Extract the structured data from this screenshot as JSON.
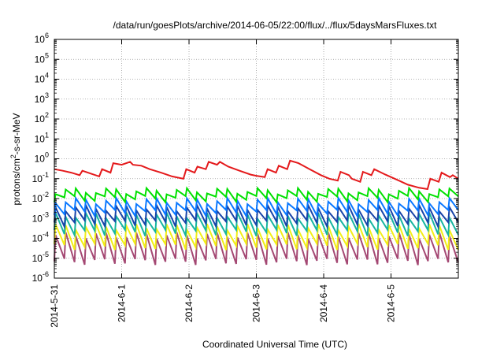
{
  "chart_data": {
    "type": "line",
    "title": "/data/run/goesPlots/archive/2014-06-05/22:00/flux/../flux/5daysMarsFluxes.txt",
    "xlabel": "Coordinated Universal Time (UTC)",
    "ylabel": "protons/cm²-s-sr-MeV",
    "ylabel_base": "protons/cm",
    "ylabel_sup": "2",
    "ylabel_rest": "-s-sr-MeV",
    "y_scale": "log",
    "ylim": [
      1e-06,
      1000000.0
    ],
    "xlim": [
      "2014-05-31 00:00",
      "2014-06-05 23:59"
    ],
    "grid": true,
    "legend": "none",
    "x_ticks": [
      "2014-5-31",
      "2014-6-1",
      "2014-6-2",
      "2014-6-3",
      "2014-6-4",
      "2014-6-5"
    ],
    "y_ticks": [
      {
        "base": "10",
        "exp": "-6"
      },
      {
        "base": "10",
        "exp": "-5"
      },
      {
        "base": "10",
        "exp": "-4"
      },
      {
        "base": "10",
        "exp": "-3"
      },
      {
        "base": "10",
        "exp": "-2"
      },
      {
        "base": "10",
        "exp": "-1"
      },
      {
        "base": "10",
        "exp": "0"
      },
      {
        "base": "10",
        "exp": "1"
      },
      {
        "base": "10",
        "exp": "2"
      },
      {
        "base": "10",
        "exp": "3"
      },
      {
        "base": "10",
        "exp": "4"
      },
      {
        "base": "10",
        "exp": "5"
      },
      {
        "base": "10",
        "exp": "6"
      }
    ],
    "series": [
      {
        "color": "#e41a1c",
        "x": [
          "2014-05-31 00:00",
          "2014-05-31 03:00",
          "2014-05-31 06:00",
          "2014-05-31 09:00",
          "2014-05-31 10:00",
          "2014-05-31 13:00",
          "2014-05-31 16:00",
          "2014-05-31 17:00",
          "2014-05-31 20:00",
          "2014-05-31 21:00",
          "2014-06-01 00:00",
          "2014-06-01 03:00",
          "2014-06-01 04:00",
          "2014-06-01 07:00",
          "2014-06-01 10:00",
          "2014-06-01 14:00",
          "2014-06-01 18:00",
          "2014-06-01 22:00",
          "2014-06-01 23:00",
          "2014-06-02 02:00",
          "2014-06-02 03:00",
          "2014-06-02 06:00",
          "2014-06-02 07:00",
          "2014-06-02 10:00",
          "2014-06-02 11:00",
          "2014-06-02 14:00",
          "2014-06-02 18:00",
          "2014-06-02 22:00",
          "2014-06-03 00:00",
          "2014-06-03 03:00",
          "2014-06-03 04:00",
          "2014-06-03 07:00",
          "2014-06-03 08:00",
          "2014-06-03 11:00",
          "2014-06-03 12:00",
          "2014-06-03 15:00",
          "2014-06-03 19:00",
          "2014-06-03 23:00",
          "2014-06-04 02:00",
          "2014-06-04 05:00",
          "2014-06-04 06:00",
          "2014-06-04 09:00",
          "2014-06-04 10:00",
          "2014-06-04 13:00",
          "2014-06-04 14:00",
          "2014-06-04 17:00",
          "2014-06-04 18:00",
          "2014-06-04 22:00",
          "2014-06-05 02:00",
          "2014-06-05 06:00",
          "2014-06-05 10:00",
          "2014-06-05 13:00",
          "2014-06-05 14:00",
          "2014-06-05 17:00",
          "2014-06-05 18:00",
          "2014-06-05 21:00",
          "2014-06-05 22:00",
          "2014-06-05 23:59"
        ],
        "y": [
          0.3,
          0.25,
          0.2,
          0.15,
          0.25,
          0.18,
          0.13,
          0.3,
          0.2,
          0.6,
          0.5,
          0.7,
          0.5,
          0.45,
          0.3,
          0.2,
          0.13,
          0.1,
          0.3,
          0.2,
          0.4,
          0.3,
          0.7,
          0.5,
          0.7,
          0.4,
          0.25,
          0.16,
          0.14,
          0.12,
          0.3,
          0.2,
          0.45,
          0.3,
          0.8,
          0.6,
          0.3,
          0.15,
          0.1,
          0.08,
          0.22,
          0.15,
          0.1,
          0.07,
          0.22,
          0.15,
          0.3,
          0.16,
          0.09,
          0.05,
          0.035,
          0.03,
          0.1,
          0.07,
          0.2,
          0.12,
          0.15,
          0.1
        ]
      },
      {
        "color": "#00e000",
        "teeth": 40,
        "peak": 0.025,
        "trough": 0.01
      },
      {
        "color": "#0a78ff",
        "teeth": 40,
        "peak": 0.008,
        "trough": 0.002
      },
      {
        "color": "#1844a8",
        "teeth": 40,
        "peak": 0.0035,
        "trough": 0.0006
      },
      {
        "color": "#17b5a0",
        "teeth": 40,
        "peak": 0.0015,
        "trough": 0.0002
      },
      {
        "color": "#f2ee16",
        "teeth": 40,
        "peak": 0.0004,
        "trough": 4e-05
      },
      {
        "color": "#a44873",
        "teeth": 40,
        "peak": 0.00015,
        "trough": 7e-06
      }
    ]
  }
}
